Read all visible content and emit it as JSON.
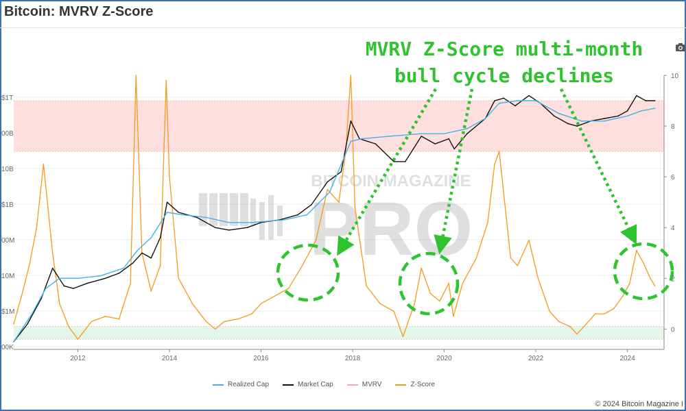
{
  "title": "Bitcoin: MVRV Z-Score",
  "annotation": {
    "line1": "MVRV Z-Score multi-month",
    "line2": "bull cycle declines",
    "color": "#2fc42f"
  },
  "copyright": "© 2024 Bitcoin Magazine I",
  "watermark": {
    "top": "BITCOIN MAGAZINE",
    "bottom": "PRO"
  },
  "icons": {
    "camera": "camera-icon"
  },
  "chart_data": {
    "type": "line",
    "title": "Bitcoin: MVRV Z-Score",
    "x_ticks": [
      "2012",
      "2014",
      "2016",
      "2018",
      "2020",
      "2022",
      "2024"
    ],
    "left_ticks": [
      "$1T",
      "00B",
      "10B",
      "$1B",
      "00M",
      "10M",
      "$1M",
      "00K"
    ],
    "right_ticks": [
      "10",
      "8",
      "6",
      "4",
      "2",
      "0"
    ],
    "right_ylim": [
      -0.8,
      10
    ],
    "zones": [
      {
        "name": "overvalued",
        "from": 7,
        "to": 9,
        "color": "#ffdede"
      },
      {
        "name": "undervalued",
        "from": -0.4,
        "to": 0.1,
        "color": "#e2f6ea"
      }
    ],
    "legend": [
      {
        "name": "Realized Cap",
        "color": "#3fb3e6"
      },
      {
        "name": "Market Cap",
        "color": "#111111"
      },
      {
        "name": "MVRV",
        "color": "#f2aab5"
      },
      {
        "name": "Z-Score",
        "color": "#f59a1b"
      }
    ],
    "series": [
      {
        "name": "Z-Score",
        "color": "#f59a1b",
        "x": [
          2010.6,
          2010.8,
          2010.95,
          2011.1,
          2011.25,
          2011.45,
          2011.6,
          2011.8,
          2012.0,
          2012.3,
          2012.6,
          2012.9,
          2013.15,
          2013.27,
          2013.4,
          2013.6,
          2013.8,
          2013.93,
          2014.0,
          2014.2,
          2014.5,
          2014.8,
          2015.0,
          2015.2,
          2015.5,
          2015.8,
          2016.0,
          2016.3,
          2016.6,
          2016.9,
          2017.2,
          2017.45,
          2017.7,
          2017.85,
          2017.96,
          2018.05,
          2018.3,
          2018.6,
          2018.9,
          2019.1,
          2019.35,
          2019.5,
          2019.7,
          2019.9,
          2020.1,
          2020.2,
          2020.4,
          2020.7,
          2020.95,
          2021.1,
          2021.2,
          2021.45,
          2021.6,
          2021.85,
          2022.05,
          2022.3,
          2022.5,
          2022.75,
          2022.9,
          2023.1,
          2023.3,
          2023.5,
          2023.7,
          2023.9,
          2024.05,
          2024.2,
          2024.35,
          2024.5,
          2024.6
        ],
        "values": [
          0.2,
          1.5,
          2.6,
          4.0,
          6.5,
          3.0,
          1.0,
          0.1,
          -0.4,
          0.3,
          0.5,
          0.4,
          1.8,
          10.0,
          3.0,
          1.5,
          2.5,
          9.8,
          6.0,
          2.0,
          1.0,
          0.3,
          0.0,
          0.3,
          0.4,
          0.6,
          1.0,
          1.3,
          1.6,
          2.5,
          3.5,
          5.5,
          5.0,
          7.0,
          10.0,
          4.8,
          1.7,
          1.0,
          0.7,
          -0.3,
          1.0,
          2.4,
          1.4,
          1.1,
          1.8,
          0.5,
          1.8,
          2.8,
          4.2,
          6.5,
          7.0,
          2.8,
          2.5,
          3.5,
          2.0,
          0.7,
          0.3,
          0.1,
          -0.2,
          0.2,
          0.6,
          0.6,
          0.8,
          1.3,
          1.8,
          3.1,
          2.6,
          2.0,
          1.7
        ]
      },
      {
        "name": "Market Cap",
        "color": "#111111",
        "x": [
          2010.6,
          2010.9,
          2011.2,
          2011.45,
          2011.7,
          2011.9,
          2012.2,
          2012.6,
          2012.9,
          2013.2,
          2013.4,
          2013.6,
          2013.8,
          2013.95,
          2014.2,
          2014.6,
          2015.0,
          2015.3,
          2015.7,
          2016.0,
          2016.4,
          2016.8,
          2017.1,
          2017.45,
          2017.75,
          2017.96,
          2018.15,
          2018.5,
          2018.9,
          2019.15,
          2019.5,
          2019.8,
          2020.1,
          2020.22,
          2020.5,
          2020.9,
          2021.1,
          2021.3,
          2021.55,
          2021.85,
          2022.1,
          2022.4,
          2022.7,
          2022.9,
          2023.2,
          2023.5,
          2023.8,
          2024.0,
          2024.2,
          2024.4,
          2024.6
        ],
        "values": [
          -0.5,
          0.2,
          1.2,
          2.4,
          1.7,
          1.6,
          1.8,
          2.0,
          2.2,
          2.6,
          3.0,
          2.8,
          3.6,
          5.0,
          4.6,
          4.4,
          4.0,
          3.9,
          4.0,
          4.2,
          4.3,
          4.5,
          4.9,
          5.8,
          6.2,
          8.2,
          7.5,
          7.3,
          6.6,
          6.6,
          7.6,
          7.3,
          7.5,
          7.1,
          7.7,
          8.3,
          9.0,
          9.1,
          8.8,
          9.2,
          8.9,
          8.4,
          8.1,
          8.0,
          8.2,
          8.3,
          8.4,
          8.6,
          9.2,
          9.0,
          9.0
        ]
      },
      {
        "name": "Realized Cap",
        "color": "#3fb3e6",
        "x": [
          2010.6,
          2011.0,
          2011.3,
          2011.6,
          2012.0,
          2012.5,
          2013.0,
          2013.3,
          2013.6,
          2013.95,
          2014.3,
          2014.8,
          2015.3,
          2015.8,
          2016.5,
          2017.0,
          2017.5,
          2017.96,
          2018.2,
          2018.8,
          2019.5,
          2020.0,
          2020.5,
          2020.9,
          2021.2,
          2021.6,
          2022.0,
          2022.5,
          2023.0,
          2023.5,
          2024.0,
          2024.3,
          2024.6
        ],
        "values": [
          -0.5,
          0.6,
          1.6,
          2.0,
          2.0,
          2.1,
          2.4,
          3.1,
          3.6,
          4.6,
          4.5,
          4.4,
          4.2,
          4.2,
          4.3,
          4.5,
          5.4,
          7.4,
          7.5,
          7.6,
          7.7,
          7.7,
          7.9,
          8.3,
          8.9,
          9.0,
          9.0,
          8.5,
          8.2,
          8.2,
          8.4,
          8.6,
          8.7
        ]
      }
    ]
  }
}
